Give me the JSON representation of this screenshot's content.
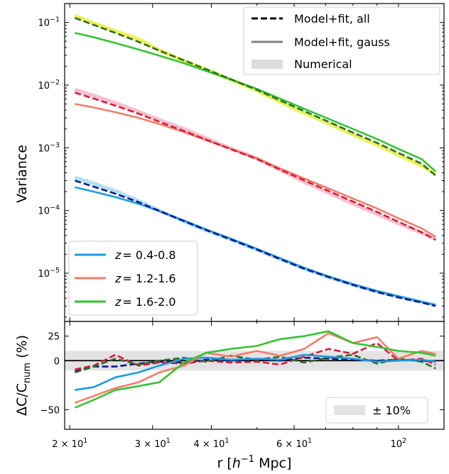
{
  "chart_data": [
    {
      "type": "line",
      "panel": "top",
      "xlabel": "",
      "ylabel": "Variance",
      "xscale": "log",
      "yscale": "log",
      "xlim": [
        19.5,
        125
      ],
      "ylim": [
        1.7e-06,
        0.2
      ],
      "y_ticks": [
        {
          "value": 1e-05,
          "base": "10",
          "exp": "−5"
        },
        {
          "value": 0.0001,
          "base": "10",
          "exp": "−4"
        },
        {
          "value": 0.001,
          "base": "10",
          "exp": "−3"
        },
        {
          "value": 0.01,
          "base": "10",
          "exp": "−2"
        },
        {
          "value": 0.1,
          "base": "10",
          "exp": "−1"
        }
      ],
      "legend_styles": {
        "position": "top-right",
        "entries": [
          {
            "label": "Model+fit, all",
            "style": "dashed",
            "color": "#000000"
          },
          {
            "label": "Model+fit, gauss",
            "style": "solid",
            "color": "#808080"
          },
          {
            "label": "Numerical",
            "style": "band",
            "color": "#dddddd"
          }
        ]
      },
      "legend_redshift": {
        "position": "lower-left",
        "entries": [
          {
            "prefix": "z",
            "range": "= 0.4-0.8",
            "color": "#1a9be0"
          },
          {
            "prefix": "z",
            "range": "= 1.2-1.6",
            "color": "#f47c6a"
          },
          {
            "prefix": "z",
            "range": "= 1.6-2.0",
            "color": "#33c433"
          }
        ]
      },
      "x": [
        20.5,
        22.5,
        25,
        28,
        31,
        35,
        39,
        44,
        50,
        56,
        63,
        71,
        80,
        90,
        100,
        112,
        120
      ],
      "series": [
        {
          "name": "z = 0.4-0.8",
          "kind": "numerical",
          "color": "#a8ddf5",
          "values": [
            0.000335,
            0.00027,
            0.000205,
            0.000143,
            0.0001,
            6.65e-05,
            4.8e-05,
            3.45e-05,
            2.35e-05,
            1.68e-05,
            1.18e-05,
            8.6e-06,
            6.5e-06,
            5.1e-06,
            4.2e-06,
            3.5e-06,
            3.1e-06
          ]
        },
        {
          "name": "z = 0.4-0.8",
          "kind": "model-all",
          "color": "#0a1a8a",
          "values": [
            0.0003,
            0.00024,
            0.000185,
            0.000136,
            9.85e-05,
            6.75e-05,
            4.88e-05,
            3.45e-05,
            2.38e-05,
            1.68e-05,
            1.18e-05,
            8.7e-06,
            6.5e-06,
            5e-06,
            4.1e-06,
            3.4e-06,
            3e-06
          ]
        },
        {
          "name": "z = 0.4-0.8",
          "kind": "model-gauss",
          "color": "#1a9be0",
          "values": [
            0.000235,
            0.0002,
            0.000164,
            0.000128,
            9.75e-05,
            6.9e-05,
            5e-05,
            3.55e-05,
            2.45e-05,
            1.74e-05,
            1.22e-05,
            8.9e-06,
            6.7e-06,
            5.2e-06,
            4.3e-06,
            3.5e-06,
            3.1e-06
          ]
        },
        {
          "name": "z = 1.2-1.6",
          "kind": "numerical",
          "color": "#f6b8c8",
          "values": [
            0.0085,
            0.0068,
            0.0052,
            0.0038,
            0.0028,
            0.002,
            0.00142,
            0.00098,
            0.00068,
            0.00044,
            0.000285,
            0.000192,
            0.000128,
            8.8e-05,
            6.2e-05,
            4.4e-05,
            3.5e-05
          ]
        },
        {
          "name": "z = 1.2-1.6",
          "kind": "model-all",
          "color": "#d81b3c",
          "values": [
            0.0076,
            0.0061,
            0.0047,
            0.0035,
            0.0026,
            0.00185,
            0.00135,
            0.00095,
            0.00066,
            0.00045,
            0.000302,
            0.000205,
            0.000139,
            9.5e-05,
            6.6e-05,
            4.5e-05,
            3.4e-05
          ]
        },
        {
          "name": "z = 1.2-1.6",
          "kind": "model-gauss",
          "color": "#f47c6a",
          "values": [
            0.005,
            0.0044,
            0.0037,
            0.003,
            0.0024,
            0.00178,
            0.00132,
            0.00096,
            0.00068,
            0.00047,
            0.000325,
            0.000225,
            0.000155,
            0.000108,
            7.5e-05,
            5.2e-05,
            3.8e-05
          ]
        },
        {
          "name": "z = 1.6-2.0",
          "kind": "numerical",
          "color": "#e8f040",
          "values": [
            0.128,
            0.097,
            0.073,
            0.054,
            0.036,
            0.0245,
            0.0178,
            0.0122,
            0.0082,
            0.0054,
            0.0036,
            0.00245,
            0.00163,
            0.00112,
            0.00077,
            0.00052,
            0.00038
          ]
        },
        {
          "name": "z = 1.6-2.0",
          "kind": "model-all",
          "color": "#2e6b2e",
          "values": [
            0.118,
            0.091,
            0.068,
            0.049,
            0.0355,
            0.0248,
            0.0179,
            0.0124,
            0.0084,
            0.0057,
            0.00385,
            0.0026,
            0.00175,
            0.0012,
            0.00083,
            0.00056,
            0.00036
          ]
        },
        {
          "name": "z = 1.6-2.0",
          "kind": "model-gauss",
          "color": "#33c433",
          "values": [
            0.068,
            0.058,
            0.047,
            0.037,
            0.0295,
            0.0223,
            0.0168,
            0.0123,
            0.0087,
            0.0061,
            0.0042,
            0.0029,
            0.002,
            0.00138,
            0.00096,
            0.00066,
            0.00042
          ]
        }
      ]
    },
    {
      "type": "line",
      "panel": "bottom",
      "xlabel_parts": {
        "pre": "r [",
        "ital": "h",
        "sup": "−1",
        "post": " Mpc]"
      },
      "ylabel_parts": {
        "pre": "ΔC/C",
        "sub": "num",
        "post": " (%)"
      },
      "xscale": "log",
      "xlim": [
        19.5,
        125
      ],
      "ylim": [
        -70,
        40
      ],
      "band": [
        -10,
        10
      ],
      "band_legend": "± 10%",
      "legend_position": "lower-right",
      "x_ticks": [
        {
          "value": 20,
          "label_pre": "2 × 10",
          "exp": "1"
        },
        {
          "value": 30,
          "label_pre": "3 × 10",
          "exp": "1"
        },
        {
          "value": 40,
          "label_pre": "4 × 10",
          "exp": "1"
        },
        {
          "value": 60,
          "label_pre": "6 × 10",
          "exp": "1"
        },
        {
          "value": 100,
          "label_pre": "10",
          "exp": "2"
        }
      ],
      "y_ticks": [
        25,
        0,
        -50
      ],
      "y_tick_labels": [
        "25",
        "0",
        "−50"
      ],
      "x": [
        20.5,
        22.5,
        25,
        28,
        31,
        35,
        39,
        44,
        50,
        56,
        63,
        71,
        80,
        90,
        100,
        112,
        120
      ],
      "series": [
        {
          "name": "z = 0.4-0.8",
          "style": "solid",
          "color": "#1a9be0",
          "values": [
            -30,
            -27,
            -17,
            -12,
            -5,
            2,
            3,
            1,
            2,
            1,
            6,
            4,
            2,
            -1,
            0,
            1,
            -1
          ]
        },
        {
          "name": "z = 0.4-0.8",
          "style": "dashed",
          "color": "#0a1a8a",
          "values": [
            -11,
            -6,
            -6,
            -3,
            -1,
            -2,
            1,
            0,
            2,
            0,
            3,
            2,
            1,
            0,
            1,
            0,
            -1
          ]
        },
        {
          "name": "z = 1.2-1.6",
          "style": "solid",
          "color": "#f47c6a",
          "values": [
            -43,
            -36,
            -28,
            -22,
            -12,
            -5,
            8,
            4,
            10,
            5,
            12,
            28,
            18,
            24,
            2,
            10,
            7
          ]
        },
        {
          "name": "z = 1.2-1.6",
          "style": "dashed",
          "color": "#d81b3c",
          "values": [
            -9,
            -5,
            6,
            -5,
            -2,
            -3,
            0,
            -2,
            -1,
            -4,
            4,
            12,
            7,
            18,
            0,
            2,
            -4
          ]
        },
        {
          "name": "z = 1.6-2.0",
          "style": "solid",
          "color": "#33c433",
          "values": [
            -48,
            -40,
            -30,
            -26,
            -22,
            -2,
            8,
            12,
            15,
            22,
            25,
            30,
            18,
            14,
            10,
            8,
            5
          ]
        },
        {
          "name": "z = 1.6-2.0",
          "style": "dashed",
          "color": "#2e6b2e",
          "values": [
            -12,
            -6,
            2,
            -4,
            0,
            3,
            -1,
            5,
            1,
            4,
            -2,
            3,
            6,
            -3,
            2,
            -1,
            -8
          ]
        }
      ]
    }
  ]
}
